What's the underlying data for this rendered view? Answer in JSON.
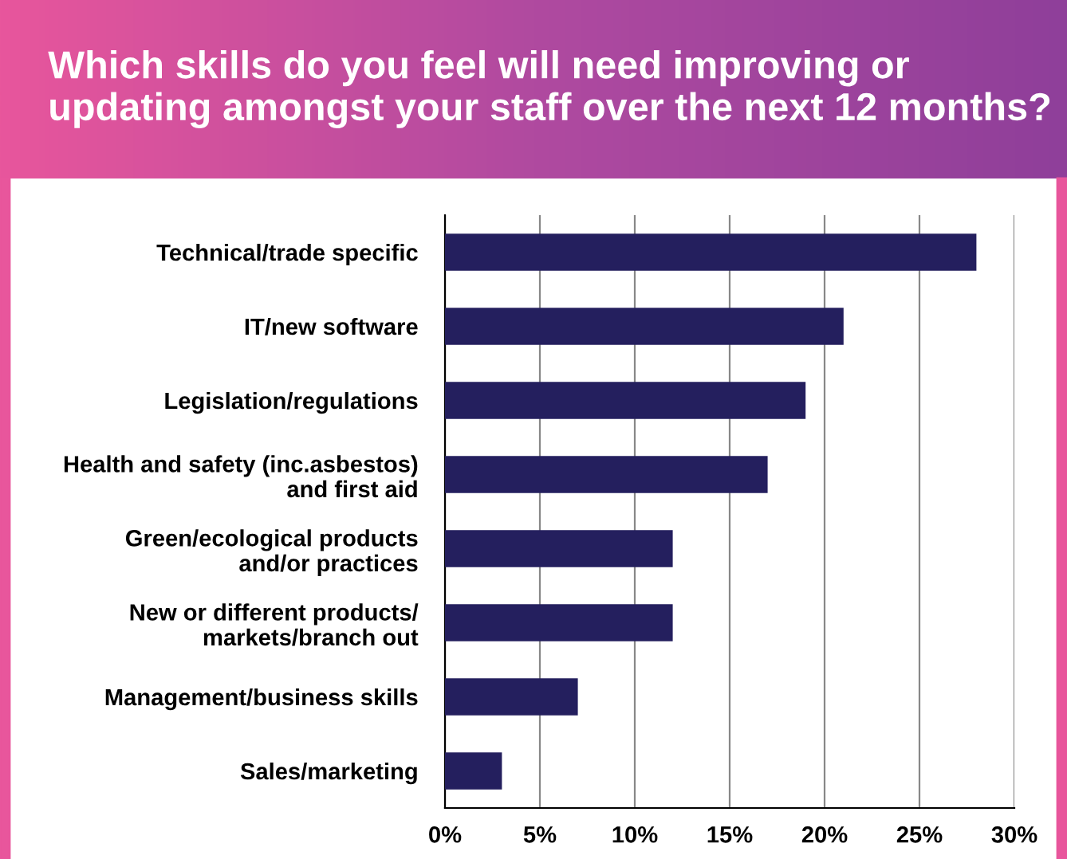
{
  "chart_data": {
    "type": "bar",
    "orientation": "horizontal",
    "title": "Which skills do you feel will need improving or updating amongst your staff over the next 12 months?",
    "categories": [
      "Technical/trade specific",
      "IT/new software",
      "Legislation/regulations",
      "Health and safety (inc.asbestos)\nand first aid",
      "Green/ecological products\nand/or practices",
      "New or different products/\nmarkets/branch out",
      "Management/business skills",
      "Sales/marketing"
    ],
    "values": [
      28,
      21,
      19,
      17,
      12,
      12,
      7,
      3
    ],
    "color": "#241f5e",
    "xlim": [
      0,
      30
    ],
    "xticks": [
      {
        "value": 0,
        "label": "0%"
      },
      {
        "value": 5,
        "label": "5%"
      },
      {
        "value": 10,
        "label": "10%"
      },
      {
        "value": 15,
        "label": "15%"
      },
      {
        "value": 20,
        "label": "20%"
      },
      {
        "value": 25,
        "label": "25%"
      },
      {
        "value": 30,
        "label": "30%"
      }
    ],
    "grid": "x"
  }
}
